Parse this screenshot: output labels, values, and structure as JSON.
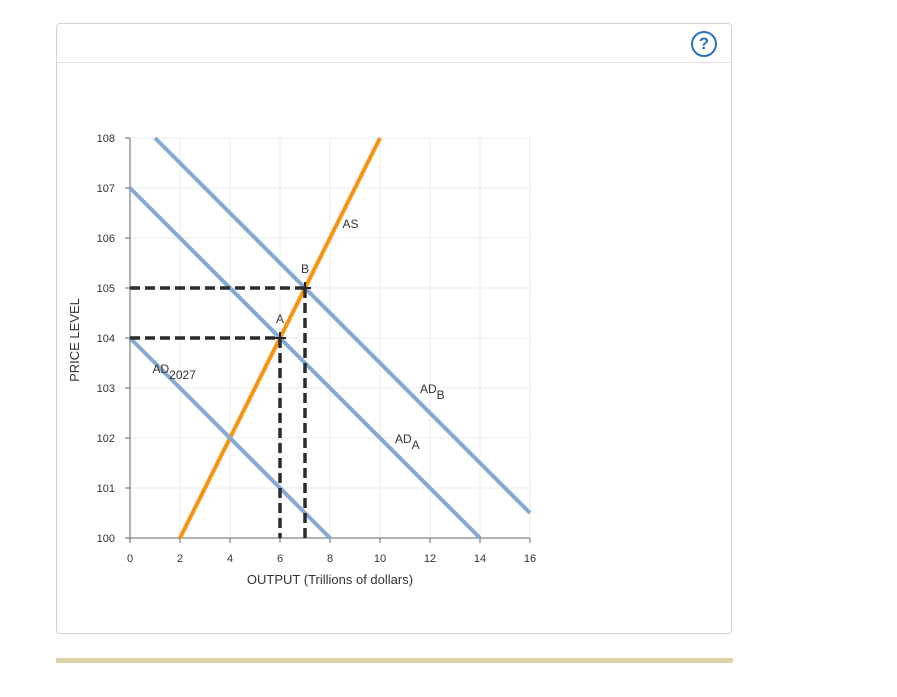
{
  "help": {
    "label": "?"
  },
  "chart_data": {
    "type": "line",
    "xlabel": "OUTPUT (Trillions of dollars)",
    "ylabel": "PRICE LEVEL",
    "xlim": [
      0,
      16
    ],
    "ylim": [
      100,
      108
    ],
    "xticks": [
      "0",
      "2",
      "4",
      "6",
      "8",
      "10",
      "12",
      "14",
      "16"
    ],
    "yticks": [
      "100",
      "101",
      "102",
      "103",
      "104",
      "105",
      "106",
      "107",
      "108"
    ],
    "grid": true,
    "colors": {
      "ad": "#82aad3",
      "as": "#f5950f",
      "dash": "#2b2b2b"
    },
    "series": [
      {
        "name": "AS",
        "x": [
          2,
          10
        ],
        "y": [
          100,
          108
        ]
      },
      {
        "name": "AD2027",
        "x": [
          0,
          8
        ],
        "y": [
          104,
          100
        ]
      },
      {
        "name": "ADA",
        "x": [
          0,
          14
        ],
        "y": [
          107,
          100
        ]
      },
      {
        "name": "ADB",
        "x": [
          1,
          16
        ],
        "y": [
          108,
          100.5
        ]
      }
    ],
    "labels": [
      {
        "id": "as",
        "text": "AS",
        "x": 8.5,
        "y": 106.2
      },
      {
        "id": "ad2027",
        "text": "AD",
        "sub": "2027",
        "x": 0.9,
        "y": 103.3
      },
      {
        "id": "ada",
        "text": "AD",
        "sub": "A",
        "x": 10.6,
        "y": 101.9
      },
      {
        "id": "adb",
        "text": "AD",
        "sub": "B",
        "x": 11.6,
        "y": 102.9
      },
      {
        "id": "point-a",
        "text": "A",
        "x": 6,
        "y": 104.3
      },
      {
        "id": "point-b",
        "text": "B",
        "x": 7,
        "y": 105.3
      }
    ],
    "points": [
      {
        "name": "A",
        "x": 6,
        "y": 104
      },
      {
        "name": "B",
        "x": 7,
        "y": 105
      }
    ]
  }
}
